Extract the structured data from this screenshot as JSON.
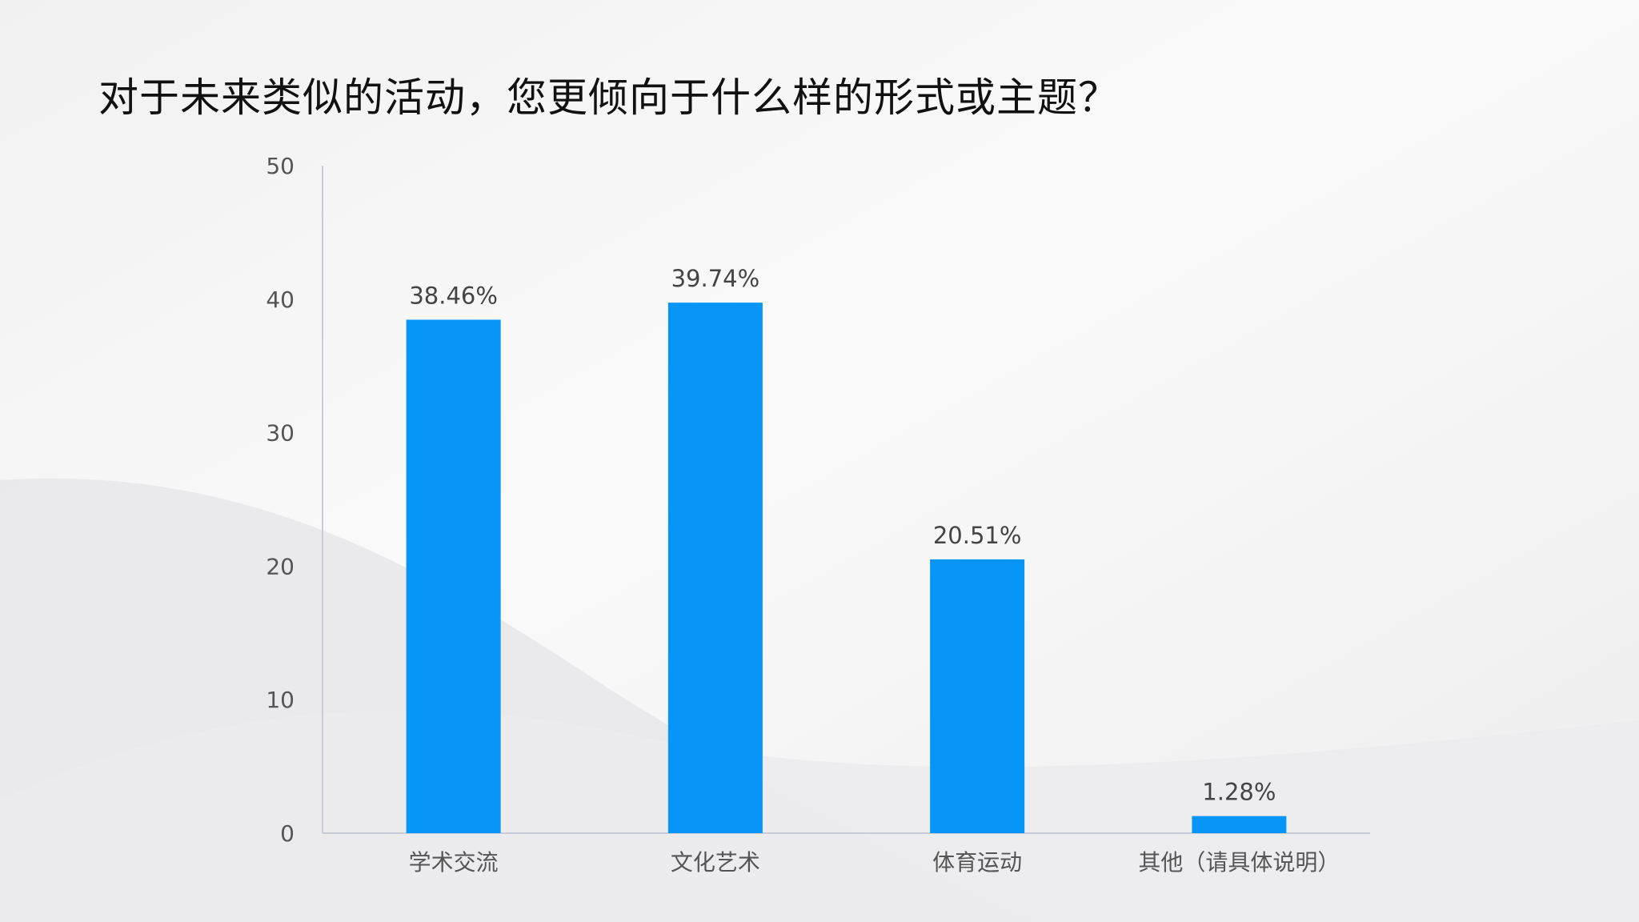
{
  "slide": {
    "title": "对于未来类似的活动，您更倾向于什么样的形式或主题？"
  },
  "colors": {
    "bar": "#0796f8",
    "axis": "#c9ccd6",
    "tick_text": "#555555",
    "label_text": "#444444",
    "background": "#f4f4f5"
  },
  "chart_data": {
    "type": "bar",
    "title": "",
    "xlabel": "",
    "ylabel": "",
    "categories": [
      "学术交流",
      "文化艺术",
      "体育运动",
      "其他（请具体说明）"
    ],
    "values": [
      38.46,
      39.74,
      20.51,
      1.28
    ],
    "data_labels": [
      "38.46%",
      "39.74%",
      "20.51%",
      "1.28%"
    ],
    "ylim": [
      0,
      50
    ],
    "yticks": [
      0,
      10,
      20,
      30,
      40,
      50
    ],
    "grid": false,
    "legend": "none"
  }
}
